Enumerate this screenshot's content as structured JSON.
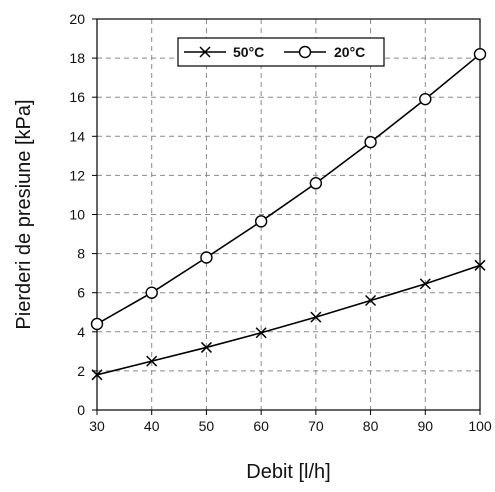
{
  "chart_data": {
    "type": "line",
    "title": "",
    "xlabel": "Debit [l/h]",
    "ylabel": "Pierderi de presiune [kPa]",
    "xlim": [
      30,
      100
    ],
    "ylim": [
      0,
      20
    ],
    "x_ticks": [
      "30",
      "40",
      "50",
      "60",
      "70",
      "80",
      "90",
      "100"
    ],
    "y_ticks": [
      "0",
      "2",
      "4",
      "6",
      "8",
      "10",
      "12",
      "14",
      "16",
      "18",
      "20"
    ],
    "grid": true,
    "legend_position": "top-center",
    "x": [
      30,
      40,
      50,
      60,
      70,
      80,
      90,
      100
    ],
    "series": [
      {
        "name": "50°C",
        "marker": "x",
        "color": "#000000",
        "values": [
          1.8,
          2.5,
          3.2,
          3.95,
          4.75,
          5.6,
          6.45,
          7.4
        ]
      },
      {
        "name": "20°C",
        "marker": "circle",
        "color": "#000000",
        "values": [
          4.4,
          6.0,
          7.8,
          9.65,
          11.6,
          13.7,
          15.9,
          18.2
        ]
      }
    ]
  }
}
